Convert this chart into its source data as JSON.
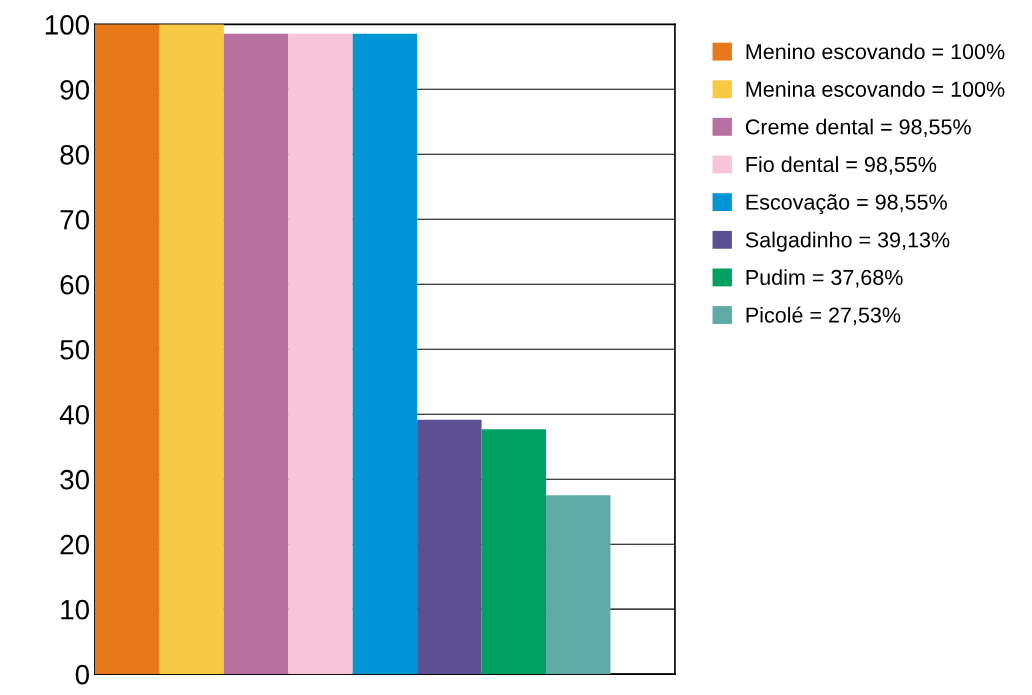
{
  "chart_data": {
    "type": "bar",
    "stacked": true,
    "categories": [
      null,
      null,
      null,
      null,
      null,
      null,
      null,
      null
    ],
    "series": [
      {
        "name": "Menino escovando = 100%",
        "color": "#e8791b",
        "values": [
          100,
          null,
          null,
          null,
          null,
          null,
          null,
          null
        ]
      },
      {
        "name": "Menina escovando = 100%",
        "color": "#f8c944",
        "values": [
          null,
          100,
          null,
          null,
          null,
          null,
          null,
          null
        ]
      },
      {
        "name": "Creme dental = 98,55%",
        "color": "#b870a3",
        "values": [
          null,
          null,
          98.55,
          null,
          null,
          null,
          null,
          null
        ]
      },
      {
        "name": "Fio dental = 98,55%",
        "color": "#f6c5da",
        "values": [
          null,
          null,
          null,
          98.55,
          null,
          null,
          null,
          null
        ]
      },
      {
        "name": "Escovação = 98,55%",
        "color": "#0096d6",
        "values": [
          null,
          null,
          null,
          null,
          98.55,
          null,
          null,
          null
        ]
      },
      {
        "name": "Salgadinho = 39,13%",
        "color": "#5c4f93",
        "values": [
          null,
          null,
          null,
          null,
          null,
          39.13,
          null,
          null
        ]
      },
      {
        "name": "Pudim = 37,68%",
        "color": "#00a160",
        "values": [
          null,
          null,
          null,
          null,
          null,
          null,
          37.68,
          null
        ]
      },
      {
        "name": "Picolé = 27,53%",
        "color": "#5faaa5",
        "values": [
          null,
          null,
          null,
          null,
          null,
          null,
          null,
          27.53
        ]
      }
    ],
    "ylim": [
      0,
      100
    ],
    "yticks": [
      0,
      10,
      20,
      30,
      40,
      50,
      60,
      70,
      80,
      90,
      100
    ],
    "grid": "y",
    "legend": "top right",
    "tick_labels": "y"
  }
}
